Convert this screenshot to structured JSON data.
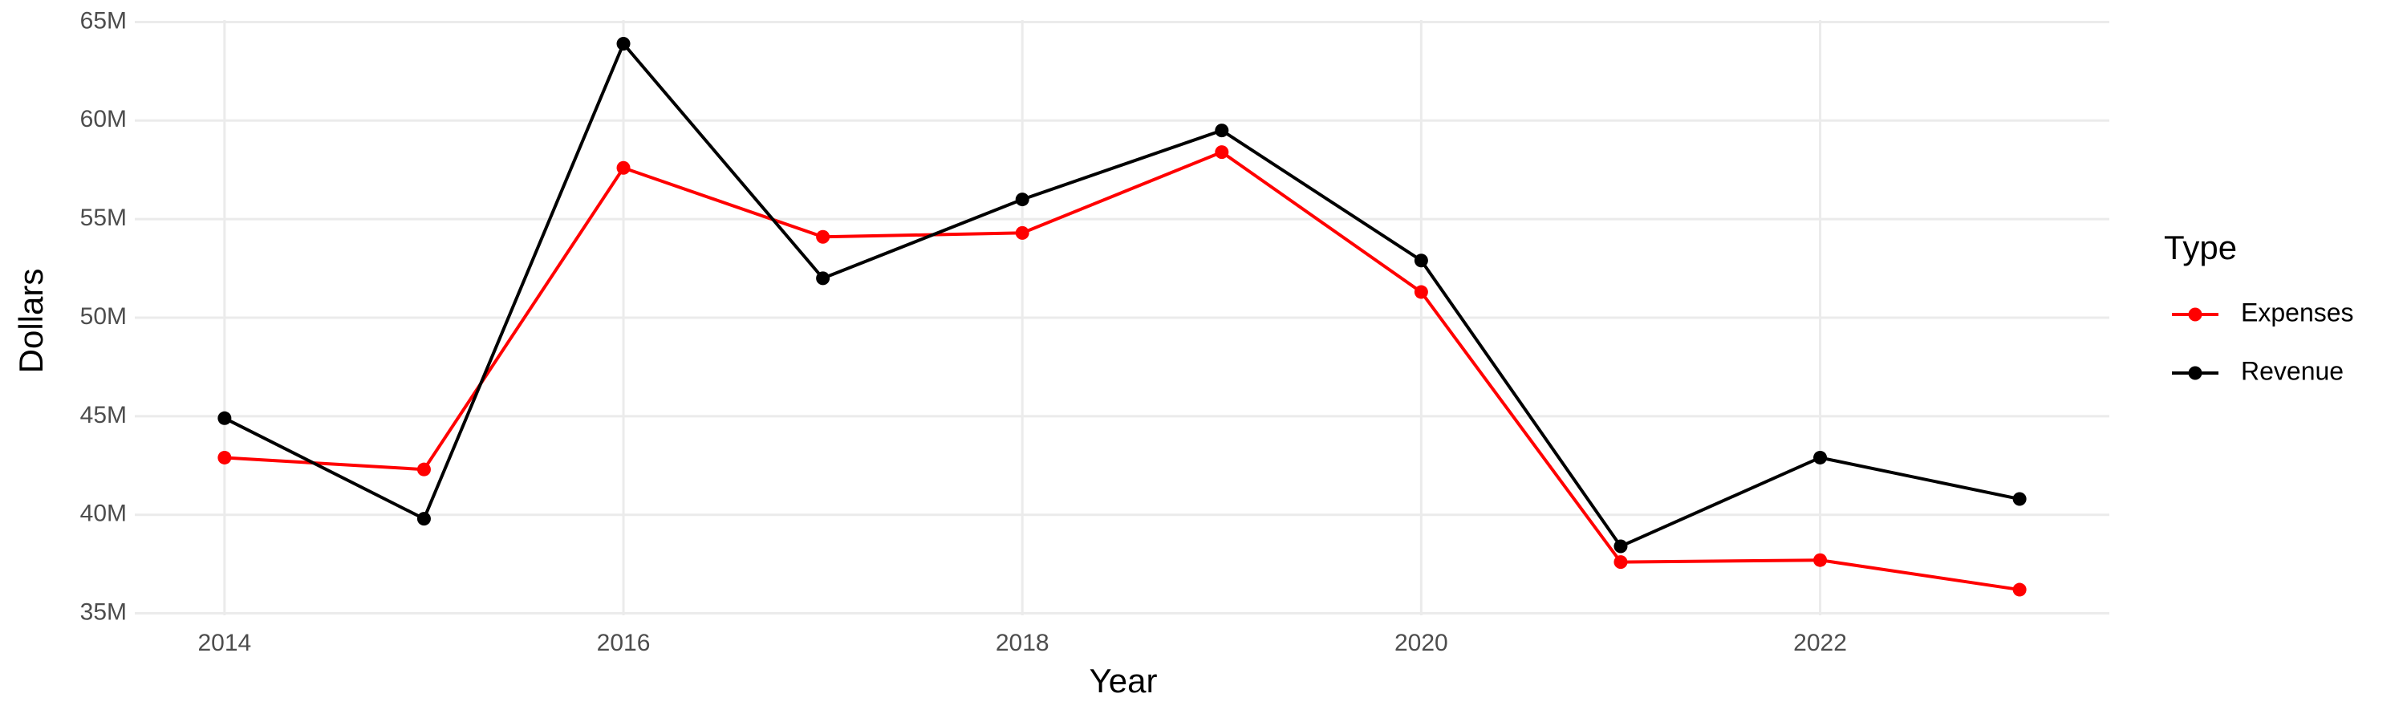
{
  "chart_data": {
    "type": "line",
    "x_label": "Year",
    "y_label": "Dollars",
    "legend_title": "Type",
    "x": [
      2014,
      2015,
      2016,
      2017,
      2018,
      2019,
      2020,
      2021,
      2022,
      2023
    ],
    "series": [
      {
        "name": "Expenses",
        "color": "#ff0000",
        "values": [
          42900000,
          42300000,
          57600000,
          54100000,
          54300000,
          58400000,
          51300000,
          37600000,
          37700000,
          36200000
        ]
      },
      {
        "name": "Revenue",
        "color": "#000000",
        "values": [
          44900000,
          39800000,
          63900000,
          52000000,
          56000000,
          59500000,
          52900000,
          38400000,
          42900000,
          40800000
        ]
      }
    ],
    "xlim": [
      2013.55,
      2023.45
    ],
    "xticks": [
      2014,
      2016,
      2018,
      2020,
      2022
    ],
    "ylim": [
      34900000,
      65100000
    ],
    "yticks": [
      {
        "value": 35000000,
        "label": "35M"
      },
      {
        "value": 40000000,
        "label": "40M"
      },
      {
        "value": 45000000,
        "label": "45M"
      },
      {
        "value": 50000000,
        "label": "50M"
      },
      {
        "value": 55000000,
        "label": "55M"
      },
      {
        "value": 60000000,
        "label": "60M"
      },
      {
        "value": 65000000,
        "label": "65M"
      }
    ],
    "grid": true,
    "legend_position": "right"
  }
}
